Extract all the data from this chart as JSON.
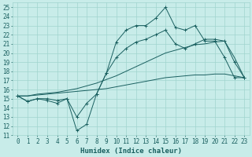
{
  "xlabel": "Humidex (Indice chaleur)",
  "xlim": [
    -0.5,
    23.5
  ],
  "ylim": [
    11,
    25.5
  ],
  "yticks": [
    11,
    12,
    13,
    14,
    15,
    16,
    17,
    18,
    19,
    20,
    21,
    22,
    23,
    24,
    25
  ],
  "xticks": [
    0,
    1,
    2,
    3,
    4,
    5,
    6,
    7,
    8,
    9,
    10,
    11,
    12,
    13,
    14,
    15,
    16,
    17,
    18,
    19,
    20,
    21,
    22,
    23
  ],
  "bg_color": "#c8ece9",
  "grid_color": "#a0d4ce",
  "line_color": "#1a6060",
  "lines": [
    {
      "x": [
        0,
        1,
        2,
        3,
        4,
        5,
        6,
        7,
        8,
        9,
        10,
        11,
        12,
        13,
        14,
        15,
        16,
        17,
        18,
        19,
        20,
        21,
        22,
        23
      ],
      "y": [
        15.3,
        14.7,
        15.0,
        15.0,
        14.8,
        15.0,
        11.5,
        12.2,
        15.5,
        17.8,
        21.2,
        22.5,
        23.0,
        23.0,
        23.8,
        25.0,
        22.8,
        22.5,
        23.0,
        21.3,
        21.3,
        19.5,
        17.3,
        17.3
      ],
      "marker": true
    },
    {
      "x": [
        0,
        1,
        2,
        3,
        4,
        5,
        6,
        7,
        8,
        9,
        10,
        11,
        12,
        13,
        14,
        15,
        16,
        17,
        18,
        19,
        20,
        21,
        22,
        23
      ],
      "y": [
        15.3,
        14.7,
        15.0,
        14.8,
        14.5,
        15.0,
        13.0,
        14.5,
        15.5,
        17.8,
        19.5,
        20.5,
        21.2,
        21.5,
        22.0,
        22.5,
        21.0,
        20.5,
        21.0,
        21.5,
        21.5,
        21.3,
        19.0,
        17.3
      ],
      "marker": true
    },
    {
      "x": [
        0,
        1,
        2,
        3,
        4,
        5,
        6,
        7,
        8,
        9,
        10,
        11,
        12,
        13,
        14,
        15,
        16,
        17,
        18,
        19,
        20,
        21,
        22,
        23
      ],
      "y": [
        15.3,
        15.3,
        15.5,
        15.6,
        15.7,
        15.9,
        16.1,
        16.4,
        16.7,
        17.1,
        17.5,
        18.0,
        18.5,
        19.0,
        19.5,
        20.0,
        20.3,
        20.6,
        20.9,
        21.0,
        21.2,
        21.3,
        19.5,
        17.3
      ],
      "marker": false
    },
    {
      "x": [
        0,
        1,
        2,
        3,
        4,
        5,
        6,
        7,
        8,
        9,
        10,
        11,
        12,
        13,
        14,
        15,
        16,
        17,
        18,
        19,
        20,
        21,
        22,
        23
      ],
      "y": [
        15.3,
        15.3,
        15.4,
        15.5,
        15.6,
        15.7,
        15.8,
        15.9,
        16.0,
        16.1,
        16.3,
        16.5,
        16.7,
        16.9,
        17.1,
        17.3,
        17.4,
        17.5,
        17.6,
        17.6,
        17.7,
        17.7,
        17.5,
        17.3
      ],
      "marker": false
    }
  ],
  "tick_fontsize": 5.5,
  "xlabel_fontsize": 6.5
}
